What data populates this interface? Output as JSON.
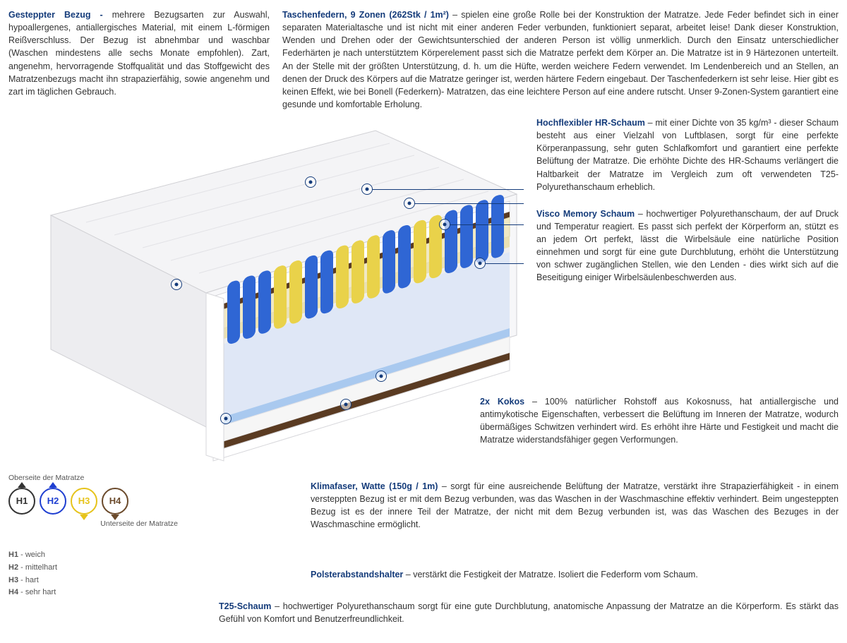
{
  "colors": {
    "title": "#143b7a",
    "text": "#333333",
    "h1": "#333333",
    "h2": "#1f3fd1",
    "h3": "#e6c31a",
    "h4": "#6b4a2b",
    "springBlue": "#2f66d4",
    "springYellow": "#e9d24a",
    "foamCream": "#f0e8c4",
    "foamBlue": "#a9c9ef",
    "coirBrown": "#5a3b22",
    "coverWhite": "#f4f4f6",
    "lightGrey": "#d9d9dd"
  },
  "top_left": {
    "title": "Gesteppter Bezug - ",
    "body": "mehrere Bezugsarten zur Auswahl, hypoallergenes, antiallergisches Material, mit einem L-förmigen Reißverschluss. Der Bezug ist abnehmbar und waschbar (Waschen mindestens alle sechs Monate empfohlen). Zart, angenehm, hervorragende Stoffqualität und das Stoffgewicht des Matratzenbezugs macht ihn strapazierfähig, sowie angenehm und zart im täglichen Gebrauch."
  },
  "top_right": {
    "title": "Taschenfedern, 9 Zonen (262Stk / 1m²) ",
    "body": "– spielen eine große Rolle bei der Konstruktion der Matratze. Jede Feder befindet sich in einer separaten Materialtasche und ist nicht mit einer anderen Feder verbunden, funktioniert separat, arbeitet leise! Dank dieser Konstruktion, Wenden und Drehen oder der Gewichtsunterschied der anderen Person ist völlig unmerklich. Durch den Einsatz unterschiedlicher Federhärten je nach unterstütztem Körperelement passt sich die Matratze perfekt dem Körper an. Die Matratze ist in 9 Härtezonen unterteilt. An der Stelle mit der größten Unterstützung, d. h. um die Hüfte, werden weichere Federn verwendet. Im Lendenbereich und an Stellen, an denen der Druck des Körpers auf die Matratze geringer ist, werden härtere Federn eingebaut. Der Taschenfederkern ist sehr leise. Hier gibt es keinen Effekt, wie bei Bonell (Federkern)- Matratzen, das eine leichtere Person auf eine andere rutscht. Unser 9-Zonen-System garantiert eine gesunde und komfortable Erholung."
  },
  "hr": {
    "title": "Hochflexibler HR-Schaum ",
    "body": "– mit einer Dichte von 35 kg/m³ - dieser Schaum besteht aus einer Vielzahl von Luftblasen, sorgt für eine perfekte Körperanpassung, sehr guten Schlafkomfort und garantiert eine perfekte Belüftung der Matratze. Die erhöhte Dichte des HR-Schaums verlängert die Haltbarkeit der Matratze im Vergleich zum oft verwendeten T25-Polyurethanschaum erheblich."
  },
  "visco": {
    "title": "Visco Memory Schaum ",
    "body": "– hochwertiger Polyurethanschaum, der auf Druck und Temperatur reagiert. Es passt sich perfekt der Körperform an, stützt es an jedem Ort perfekt, lässt die Wirbelsäule eine natürliche Position einnehmen und sorgt für eine gute Durchblutung, erhöht die Unterstützung von schwer zugänglichen Stellen, wie den Lenden - dies wirkt sich auf die Beseitigung einiger Wirbelsäulenbeschwerden aus."
  },
  "kokos": {
    "title": "2x Kokos ",
    "body": "– 100% natürlicher Rohstoff aus Kokosnuss, hat antiallergische und antimykotische Eigenschaften, verbessert die Belüftung im Inneren der Matratze, wodurch übermäßiges Schwitzen verhindert wird. Es erhöht ihre Härte und Festigkeit und macht die Matratze widerstandsfähiger gegen Verformungen."
  },
  "klima": {
    "title": "Klimafaser, Watte (150g / 1m) ",
    "body": "– sorgt für eine ausreichende Belüftung der Matratze, verstärkt ihre Strapazierfähigkeit - in einem versteppten Bezug ist er mit dem Bezug verbunden, was das Waschen in der Waschmaschine effektiv verhindert. Beim ungesteppten Bezug ist es der innere Teil der Matratze, der nicht mit dem Bezug verbunden ist, was das Waschen des Bezuges in der Waschmaschine ermöglicht."
  },
  "polster": {
    "title": "Polsterabstandshalter ",
    "body": "– verstärkt die Festigkeit der Matratze. Isoliert die Federform vom Schaum."
  },
  "t25": {
    "title": "T25-Schaum ",
    "body": "– hochwertiger Polyurethanschaum sorgt für eine gute Durchblutung, anatomische Anpassung der Matratze an die Körperform. Es stärkt das Gefühl von Komfort und Benutzerfreundlichkeit."
  },
  "hardness": {
    "top_label": "Oberseite der Matratze",
    "bottom_label": "Unterseite der Matratze",
    "items": [
      {
        "code": "H1",
        "desc": "weich",
        "color": "#333333",
        "tri": "up"
      },
      {
        "code": "H2",
        "desc": "mittelhart",
        "color": "#1f3fd1",
        "tri": "up"
      },
      {
        "code": "H3",
        "desc": "hart",
        "color": "#e6c31a",
        "tri": "down"
      },
      {
        "code": "H4",
        "desc": "sehr hart",
        "color": "#6b4a2b",
        "tri": "down"
      }
    ]
  }
}
